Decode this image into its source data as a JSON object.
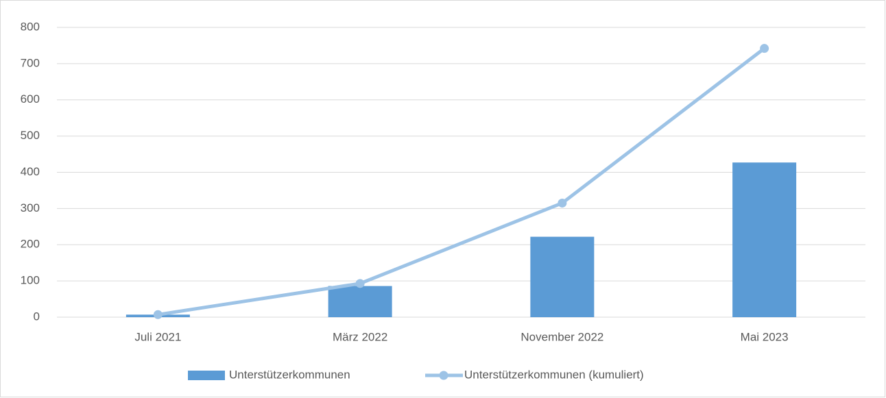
{
  "chart_data": {
    "type": "bar",
    "categories": [
      "Juli 2021",
      "März 2022",
      "November 2022",
      "Mai 2023"
    ],
    "series": [
      {
        "name": "Unterstützerkommunen",
        "type": "bar",
        "color": "#5b9bd5",
        "values": [
          7,
          86,
          222,
          427
        ]
      },
      {
        "name": "Unterstützerkommunen (kumuliert)",
        "type": "line",
        "color": "#9dc3e6",
        "values": [
          7,
          93,
          315,
          742
        ]
      }
    ],
    "ylim": [
      0,
      800
    ],
    "yticks": [
      0,
      100,
      200,
      300,
      400,
      500,
      600,
      700,
      800
    ],
    "grid": true,
    "legend": "bottom"
  }
}
